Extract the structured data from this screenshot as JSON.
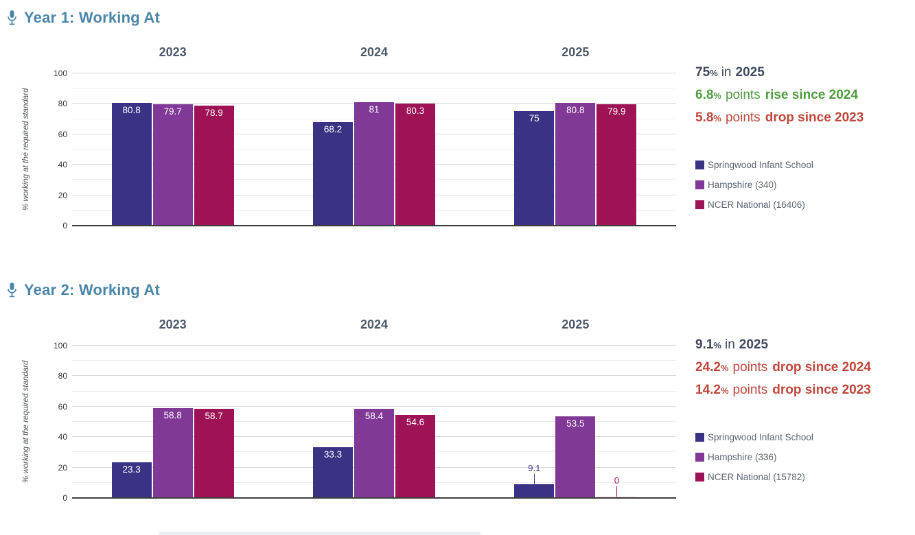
{
  "strings": {
    "percent": "%",
    "in_word": "in",
    "points_word": "points"
  },
  "colors": {
    "section_title": "#4a86a8",
    "mic_icon": "#4a86a8",
    "year_heading": "#4d5a6b",
    "summary_text": "#3f4a5f",
    "rise_green": "#4e9c3f",
    "drop_red": "#c0473c",
    "legend_text": "#5b6472",
    "axis_tick": "#35383c",
    "zero_bar": "#eed9e4",
    "series": [
      "#3a3385",
      "#803996",
      "#9d1355"
    ]
  },
  "chart_data": [
    {
      "type": "bar",
      "title": "Year 1: Working At",
      "ylabel": "% working at the required standard",
      "ylim": [
        0,
        100
      ],
      "yticks": [
        0,
        20,
        40,
        60,
        80,
        100
      ],
      "grid": "horizontal, minor every 10, major every 20",
      "legend_position": "right",
      "categories": [
        "2023",
        "2024",
        "2025"
      ],
      "series": [
        {
          "name": "Springwood Infant School",
          "color": "#3a3385",
          "values": [
            80.8,
            68.2,
            75
          ]
        },
        {
          "name": "Hampshire (340)",
          "color": "#803996",
          "values": [
            79.7,
            81,
            80.8
          ]
        },
        {
          "name": "NCER National (16406)",
          "color": "#9d1355",
          "values": [
            78.9,
            80.3,
            79.9
          ]
        }
      ],
      "summary": {
        "headline_value": "75",
        "headline_year": "2025",
        "deltas": [
          {
            "value": "6.8",
            "direction": "rise",
            "tail": "rise since 2024",
            "color": "#4e9c3f"
          },
          {
            "value": "5.8",
            "direction": "drop",
            "tail": "drop since 2023",
            "color": "#c0473c"
          }
        ]
      }
    },
    {
      "type": "bar",
      "title": "Year 2: Working At",
      "ylabel": "% working at the required standard",
      "ylim": [
        0,
        100
      ],
      "yticks": [
        0,
        20,
        40,
        60,
        80,
        100
      ],
      "grid": "horizontal, minor every 10, major every 20",
      "legend_position": "right",
      "categories": [
        "2023",
        "2024",
        "2025"
      ],
      "series": [
        {
          "name": "Springwood Infant School",
          "color": "#3a3385",
          "values": [
            23.3,
            33.3,
            9.1
          ]
        },
        {
          "name": "Hampshire (336)",
          "color": "#803996",
          "values": [
            58.8,
            58.4,
            53.5
          ]
        },
        {
          "name": "NCER National (15782)",
          "color": "#9d1355",
          "values": [
            58.7,
            54.6,
            0
          ]
        }
      ],
      "summary": {
        "headline_value": "9.1",
        "headline_year": "2025",
        "deltas": [
          {
            "value": "24.2",
            "direction": "drop",
            "tail": "drop since 2024",
            "color": "#c0473c"
          },
          {
            "value": "14.2",
            "direction": "drop",
            "tail": "drop since 2023",
            "color": "#c0473c"
          }
        ]
      }
    }
  ]
}
